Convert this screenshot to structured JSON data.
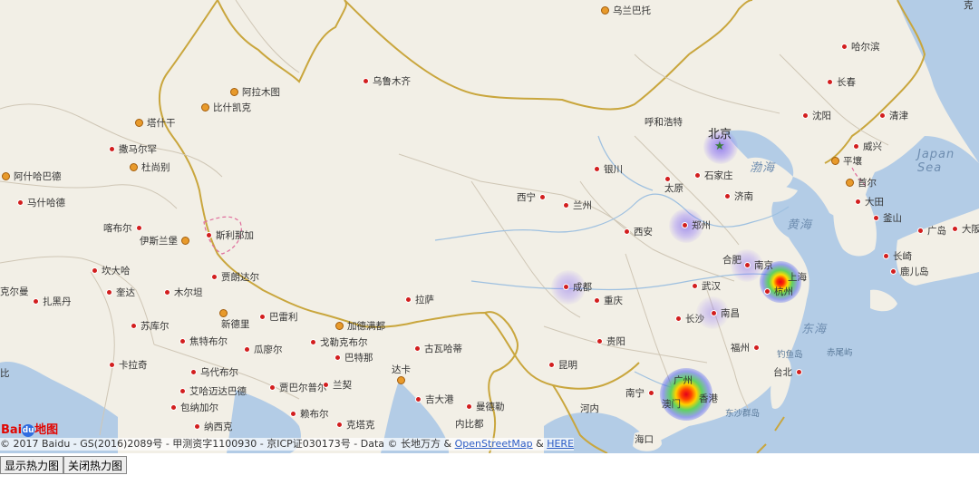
{
  "map": {
    "cities": [
      {
        "name": "乌兰巴托",
        "capital": true
      },
      {
        "name": "哈尔滨",
        "capital": false
      },
      {
        "name": "长春",
        "capital": false
      },
      {
        "name": "乌鲁木齐",
        "capital": false
      },
      {
        "name": "阿拉木图",
        "capital": true
      },
      {
        "name": "比什凯克",
        "capital": true
      },
      {
        "name": "塔什干",
        "capital": true
      },
      {
        "name": "撒马尔罕",
        "capital": false
      },
      {
        "name": "杜尚别",
        "capital": true
      },
      {
        "name": "阿什哈巴德",
        "capital": true
      },
      {
        "name": "马什哈德",
        "capital": false
      },
      {
        "name": "喀布尔",
        "capital": false
      },
      {
        "name": "伊斯兰堡",
        "capital": true
      },
      {
        "name": "斯利那加",
        "capital": false
      },
      {
        "name": "坎大哈",
        "capital": false
      },
      {
        "name": "克尔曼",
        "capital": false
      },
      {
        "name": "扎黑丹",
        "capital": false
      },
      {
        "name": "奎达",
        "capital": false
      },
      {
        "name": "木尔坦",
        "capital": false
      },
      {
        "name": "贾朗达尔",
        "capital": false
      },
      {
        "name": "新德里",
        "capital": true
      },
      {
        "name": "巴雷利",
        "capital": false
      },
      {
        "name": "苏库尔",
        "capital": false
      },
      {
        "name": "焦特布尔",
        "capital": false
      },
      {
        "name": "瓜廖尔",
        "capital": false
      },
      {
        "name": "戈勒克布尔",
        "capital": false
      },
      {
        "name": "加德满都",
        "capital": true
      },
      {
        "name": "卡拉奇",
        "capital": false
      },
      {
        "name": "乌代布尔",
        "capital": false
      },
      {
        "name": "巴特那",
        "capital": false
      },
      {
        "name": "艾哈迈达巴德",
        "capital": false
      },
      {
        "name": "贾巴尔普尔",
        "capital": false
      },
      {
        "name": "兰契",
        "capital": false
      },
      {
        "name": "达卡",
        "capital": true
      },
      {
        "name": "包纳加尔",
        "capital": false
      },
      {
        "name": "赖布尔",
        "capital": false
      },
      {
        "name": "纳西克",
        "capital": false
      },
      {
        "name": "克塔克",
        "capital": false
      },
      {
        "name": "拉萨",
        "capital": false
      },
      {
        "name": "古瓦哈蒂",
        "capital": false
      },
      {
        "name": "吉大港",
        "capital": false
      },
      {
        "name": "曼德勒",
        "capital": false
      },
      {
        "name": "内比都",
        "capital": false
      },
      {
        "name": "西宁",
        "capital": false
      },
      {
        "name": "兰州",
        "capital": false
      },
      {
        "name": "银川",
        "capital": false
      },
      {
        "name": "呼和浩特",
        "capital": false
      },
      {
        "name": "太原",
        "capital": false
      },
      {
        "name": "石家庄",
        "capital": false
      },
      {
        "name": "济南",
        "capital": false
      },
      {
        "name": "沈阳",
        "capital": false
      },
      {
        "name": "清津",
        "capital": false
      },
      {
        "name": "威兴",
        "capital": false
      },
      {
        "name": "平壤",
        "capital": true
      },
      {
        "name": "首尔",
        "capital": true
      },
      {
        "name": "大田",
        "capital": false
      },
      {
        "name": "釜山",
        "capital": false
      },
      {
        "name": "广岛",
        "capital": false
      },
      {
        "name": "大阪",
        "capital": false
      },
      {
        "name": "长崎",
        "capital": false
      },
      {
        "name": "鹿儿岛",
        "capital": false
      },
      {
        "name": "郑州",
        "capital": false
      },
      {
        "name": "西安",
        "capital": false
      },
      {
        "name": "成都",
        "capital": false
      },
      {
        "name": "重庆",
        "capital": false
      },
      {
        "name": "合肥",
        "capital": false
      },
      {
        "name": "南京",
        "capital": false
      },
      {
        "name": "上海",
        "capital": false
      },
      {
        "name": "杭州",
        "capital": false
      },
      {
        "name": "武汉",
        "capital": false
      },
      {
        "name": "长沙",
        "capital": false
      },
      {
        "name": "南昌",
        "capital": false
      },
      {
        "name": "贵阳",
        "capital": false
      },
      {
        "name": "昆明",
        "capital": false
      },
      {
        "name": "福州",
        "capital": false
      },
      {
        "name": "台北",
        "capital": false
      },
      {
        "name": "南宁",
        "capital": false
      },
      {
        "name": "广州",
        "capital": false
      },
      {
        "name": "香港",
        "capital": false
      },
      {
        "name": "澳门",
        "capital": false
      },
      {
        "name": "河内",
        "capital": true
      },
      {
        "name": "海口",
        "capital": false
      }
    ],
    "beijing": "北京",
    "seas": [
      "渤海",
      "黄海",
      "东海",
      "Japan Sea"
    ],
    "sea_labels": {
      "bohai": "渤海",
      "huanghai": "黄海",
      "donghai": "东海",
      "riben": "Japan Sea"
    },
    "islands": {
      "diaoyu": "钓鱼岛",
      "chiwei": "赤尾屿",
      "dongsha": "东沙群岛"
    },
    "edge_labels": {
      "top_right": "克",
      "left_bottom": "比",
      "left_mid": "克尔曼"
    },
    "heatmap_points": [
      "北京",
      "郑州",
      "成都",
      "南京",
      "上海",
      "杭州",
      "南昌",
      "广州",
      "香港",
      "澳门"
    ]
  },
  "logo": {
    "text": "Bai",
    "paw": "du",
    "suffix": "地图"
  },
  "copyright": {
    "prefix": "© 2017 Baidu - GS(2016)2089号 - 甲测资字1100930 - 京ICP证030173号 - Data © 长地万方 & ",
    "osm": "OpenStreetMap",
    "amp": " & ",
    "here": "HERE"
  },
  "controls": {
    "show_heatmap": "显示热力图",
    "hide_heatmap": "关闭热力图"
  },
  "colors": {
    "land": "#f2efe6",
    "sea": "#b3cce6",
    "province_border": "#cfc6b5",
    "national_border": "#c9a63d",
    "rivers": "#9ec0e0",
    "city_dot": "#d21e1e"
  }
}
